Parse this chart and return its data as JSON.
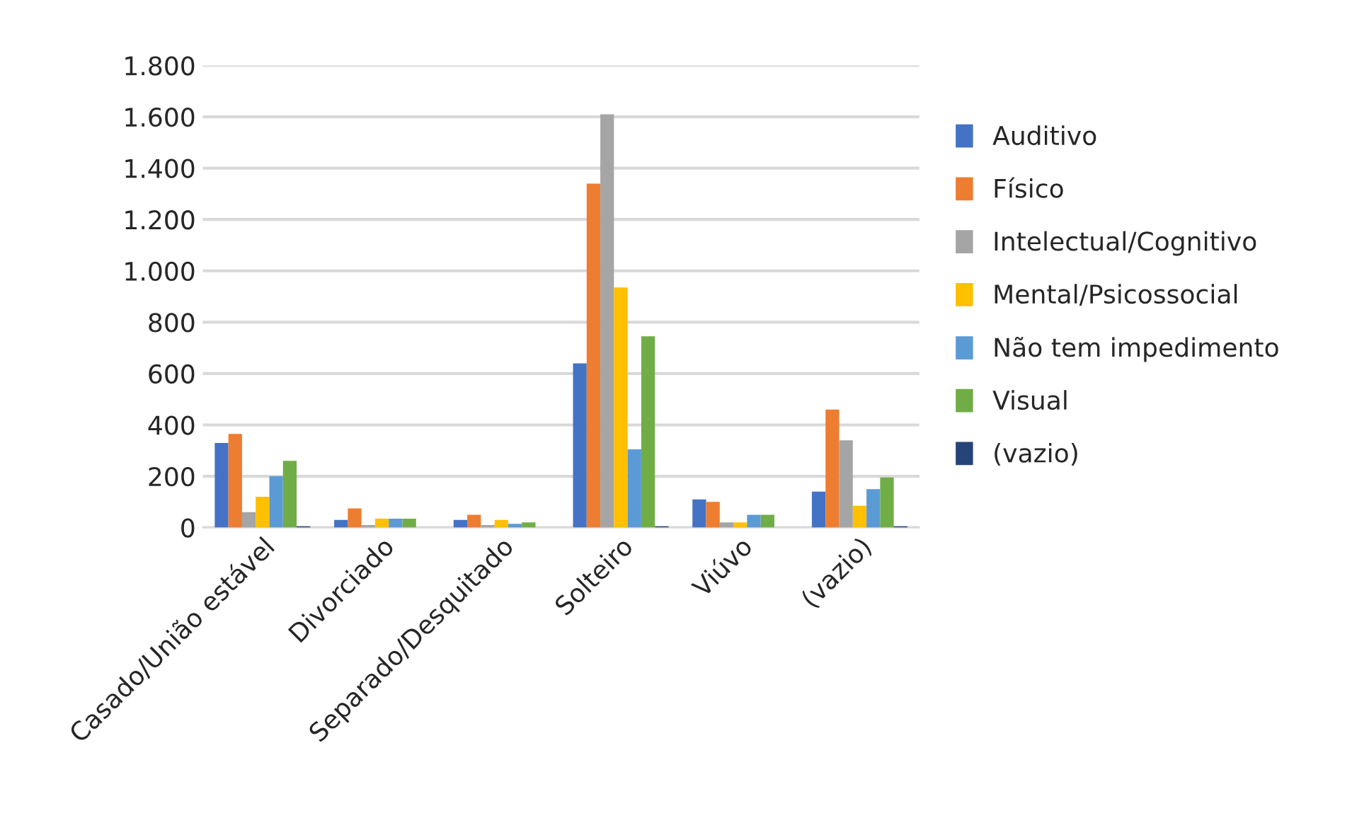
{
  "chart_data": {
    "type": "bar",
    "categories": [
      "Casado/União estável",
      "Divorciado",
      "Separado/Desquitado",
      "Solteiro",
      "Viúvo",
      "(vazio)"
    ],
    "series": [
      {
        "name": "Auditivo",
        "color": "#4472c4",
        "values": [
          330,
          30,
          30,
          640,
          110,
          140
        ]
      },
      {
        "name": "Físico",
        "color": "#ed7d31",
        "values": [
          365,
          75,
          50,
          1340,
          100,
          460
        ]
      },
      {
        "name": "Intelectual/Cognitivo",
        "color": "#a5a5a5",
        "values": [
          60,
          10,
          10,
          1610,
          20,
          340
        ]
      },
      {
        "name": "Mental/Psicossocial",
        "color": "#ffc000",
        "values": [
          120,
          35,
          30,
          935,
          20,
          85
        ]
      },
      {
        "name": "Não tem impedimento",
        "color": "#5b9bd5",
        "values": [
          200,
          35,
          15,
          305,
          50,
          150
        ]
      },
      {
        "name": "Visual",
        "color": "#70ad47",
        "values": [
          260,
          35,
          20,
          745,
          50,
          195
        ]
      },
      {
        "name": "(vazio)",
        "color": "#264478",
        "values": [
          5,
          null,
          null,
          5,
          null,
          5
        ]
      }
    ],
    "ylim": [
      0,
      1800
    ],
    "yticks": [
      {
        "value": 0,
        "label": "0"
      },
      {
        "value": 200,
        "label": "200"
      },
      {
        "value": 400,
        "label": "400"
      },
      {
        "value": 600,
        "label": "600"
      },
      {
        "value": 800,
        "label": "800"
      },
      {
        "value": 1000,
        "label": "1.000"
      },
      {
        "value": 1200,
        "label": "1.200"
      },
      {
        "value": 1400,
        "label": "1.400"
      },
      {
        "value": 1600,
        "label": "1.600"
      },
      {
        "value": 1800,
        "label": "1.800"
      }
    ],
    "grid": "y",
    "legend": "right"
  }
}
